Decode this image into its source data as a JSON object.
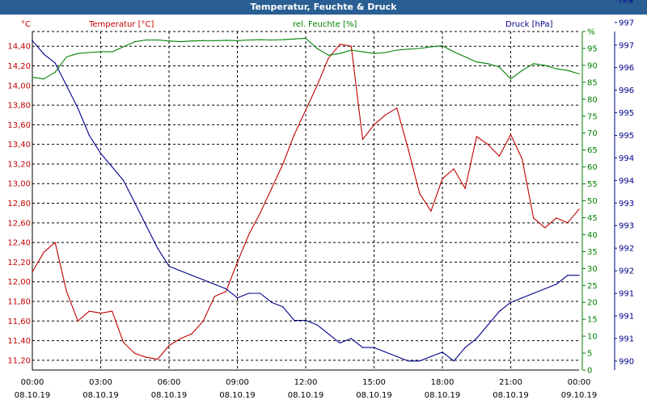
{
  "chart_data": {
    "type": "line",
    "title": "Temperatur, Feuchte & Druck",
    "x": [
      "08.10.19 00:00",
      "08.10.19 00:30",
      "08.10.19 01:00",
      "08.10.19 01:30",
      "08.10.19 02:00",
      "08.10.19 02:30",
      "08.10.19 03:00",
      "08.10.19 03:30",
      "08.10.19 04:00",
      "08.10.19 04:30",
      "08.10.19 05:00",
      "08.10.19 05:30",
      "08.10.19 06:00",
      "08.10.19 06:30",
      "08.10.19 07:00",
      "08.10.19 07:30",
      "08.10.19 08:00",
      "08.10.19 08:30",
      "08.10.19 09:00",
      "08.10.19 09:30",
      "08.10.19 10:00",
      "08.10.19 10:30",
      "08.10.19 11:00",
      "08.10.19 11:30",
      "08.10.19 12:00",
      "08.10.19 12:30",
      "08.10.19 13:00",
      "08.10.19 13:30",
      "08.10.19 14:00",
      "08.10.19 14:30",
      "08.10.19 15:00",
      "08.10.19 15:30",
      "08.10.19 16:00",
      "08.10.19 16:30",
      "08.10.19 17:00",
      "08.10.19 17:30",
      "08.10.19 18:00",
      "08.10.19 18:30",
      "08.10.19 19:00",
      "08.10.19 19:30",
      "08.10.19 20:00",
      "08.10.19 20:30",
      "08.10.19 21:00",
      "08.10.19 21:30",
      "08.10.19 22:00",
      "08.10.19 22:30",
      "08.10.19 23:00",
      "08.10.19 23:30",
      "09.10.19 00:00"
    ],
    "x_ticks": [
      {
        "time": "00:00",
        "date": "08.10.19"
      },
      {
        "time": "03:00",
        "date": "08.10.19"
      },
      {
        "time": "06:00",
        "date": "08.10.19"
      },
      {
        "time": "09:00",
        "date": "08.10.19"
      },
      {
        "time": "12:00",
        "date": "08.10.19"
      },
      {
        "time": "15:00",
        "date": "08.10.19"
      },
      {
        "time": "18:00",
        "date": "08.10.19"
      },
      {
        "time": "21:00",
        "date": "08.10.19"
      },
      {
        "time": "00:00",
        "date": "09.10.19"
      }
    ],
    "axes": {
      "temperature": {
        "label": "Temperatur [°C]",
        "unit": "°C",
        "color": "#c00000",
        "position": "left",
        "ylim": [
          11.1,
          14.55
        ],
        "ticks": [
          "11,20",
          "11,40",
          "11,60",
          "11,80",
          "12,00",
          "12,20",
          "12,40",
          "12,60",
          "12,80",
          "13,00",
          "13,20",
          "13,40",
          "13,60",
          "13,80",
          "14,00",
          "14,20",
          "14,40"
        ],
        "tick_values": [
          11.2,
          11.4,
          11.6,
          11.8,
          12.0,
          12.2,
          12.4,
          12.6,
          12.8,
          13.0,
          13.2,
          13.4,
          13.6,
          13.8,
          14.0,
          14.2,
          14.4
        ]
      },
      "humidity": {
        "label": "rel. Feuchte [%]",
        "unit": "%",
        "color": "#008000",
        "position": "right",
        "ylim": [
          0,
          100
        ],
        "ticks": [
          "0",
          "5",
          "10",
          "15",
          "20",
          "25",
          "30",
          "35",
          "40",
          "45",
          "50",
          "55",
          "60",
          "65",
          "70",
          "75",
          "80",
          "85",
          "90",
          "95",
          "%"
        ],
        "tick_values": [
          0,
          5,
          10,
          15,
          20,
          25,
          30,
          35,
          40,
          45,
          50,
          55,
          60,
          65,
          70,
          75,
          80,
          85,
          90,
          95,
          100
        ]
      },
      "pressure": {
        "label": "Druck [hPa]",
        "unit": "hPa",
        "color": "#00008b",
        "position": "right-outer",
        "ylim": [
          989.8,
          997.3
        ],
        "ticks": [
          "990",
          "991",
          "991",
          "991",
          "992",
          "992",
          "993",
          "993",
          "994",
          "994",
          "995",
          "995",
          "996",
          "996",
          "997",
          "997",
          "hPa"
        ],
        "tick_values": [
          990.0,
          990.5,
          991.0,
          991.5,
          992.0,
          992.5,
          993.0,
          993.5,
          994.0,
          994.5,
          995.0,
          995.5,
          996.0,
          996.5,
          997.0,
          997.5,
          998.0
        ]
      }
    },
    "series": [
      {
        "name": "Temperatur [°C]",
        "axis": "temperature",
        "color": "#c00000",
        "values": [
          12.1,
          12.3,
          12.4,
          11.9,
          11.6,
          11.7,
          11.68,
          11.7,
          11.38,
          11.27,
          11.23,
          11.21,
          11.35,
          11.42,
          11.47,
          11.6,
          11.85,
          11.9,
          12.2,
          12.48,
          12.7,
          12.95,
          13.2,
          13.5,
          13.75,
          14.0,
          14.28,
          14.42,
          14.4,
          13.45,
          13.6,
          13.7,
          13.77,
          13.35,
          12.9,
          12.72,
          13.05,
          13.15,
          12.95,
          13.48,
          13.4,
          13.28,
          13.5,
          13.25,
          12.65,
          12.55,
          12.65,
          12.6,
          12.74
        ]
      },
      {
        "name": "rel. Feuchte [%]",
        "axis": "humidity",
        "color": "#008000",
        "values": [
          86.5,
          86.0,
          88.0,
          92.5,
          93.5,
          93.8,
          94.0,
          94.0,
          95.5,
          97.0,
          97.5,
          97.5,
          97.2,
          97.0,
          97.2,
          97.3,
          97.3,
          97.4,
          97.3,
          97.5,
          97.6,
          97.5,
          97.6,
          97.8,
          98.0,
          95.0,
          93.0,
          93.5,
          94.5,
          94.0,
          93.5,
          93.8,
          94.5,
          94.8,
          95.0,
          95.5,
          95.8,
          94.0,
          92.5,
          91.0,
          90.5,
          89.5,
          86.0,
          88.5,
          90.5,
          90.0,
          89.0,
          88.5,
          87.5
        ]
      },
      {
        "name": "Druck [hPa]",
        "axis": "pressure",
        "color": "#00008b",
        "values": [
          997.1,
          996.8,
          996.6,
          996.1,
          995.6,
          995.0,
          994.6,
          994.3,
          994.0,
          993.5,
          993.0,
          992.5,
          992.1,
          992.0,
          991.9,
          991.8,
          991.7,
          991.6,
          991.4,
          991.5,
          991.5,
          991.3,
          991.2,
          990.9,
          990.9,
          990.8,
          990.6,
          990.4,
          990.5,
          990.3,
          990.3,
          990.2,
          990.1,
          990.0,
          990.0,
          990.1,
          990.2,
          990.0,
          990.3,
          990.5,
          990.8,
          991.1,
          991.3,
          991.4,
          991.5,
          991.6,
          991.7,
          991.9,
          991.9
        ]
      }
    ],
    "grid": true
  }
}
